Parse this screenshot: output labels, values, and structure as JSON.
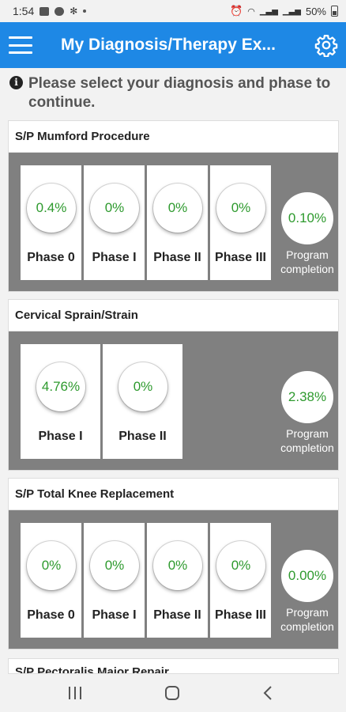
{
  "status_bar": {
    "time": "1:54",
    "battery": "50%"
  },
  "app_bar": {
    "title": "My Diagnosis/Therapy Ex..."
  },
  "info": {
    "text": "Please select your diagnosis and phase to continue."
  },
  "diagnoses": [
    {
      "title": "S/P Mumford Procedure",
      "phases": [
        {
          "label": "Phase 0",
          "percent": "0.4%"
        },
        {
          "label": "Phase I",
          "percent": "0%"
        },
        {
          "label": "Phase II",
          "percent": "0%"
        },
        {
          "label": "Phase III",
          "percent": "0%"
        }
      ],
      "program_completion": "0.10%",
      "program_label": "Program completion"
    },
    {
      "title": "Cervical Sprain/Strain",
      "phases": [
        {
          "label": "Phase I",
          "percent": "4.76%"
        },
        {
          "label": "Phase II",
          "percent": "0%"
        }
      ],
      "program_completion": "2.38%",
      "program_label": "Program completion"
    },
    {
      "title": "S/P Total Knee Replacement",
      "phases": [
        {
          "label": "Phase 0",
          "percent": "0%"
        },
        {
          "label": "Phase I",
          "percent": "0%"
        },
        {
          "label": "Phase II",
          "percent": "0%"
        },
        {
          "label": "Phase III",
          "percent": "0%"
        }
      ],
      "program_completion": "0.00%",
      "program_label": "Program completion"
    },
    {
      "title": "S/P Pectoralis Major Repair"
    }
  ]
}
